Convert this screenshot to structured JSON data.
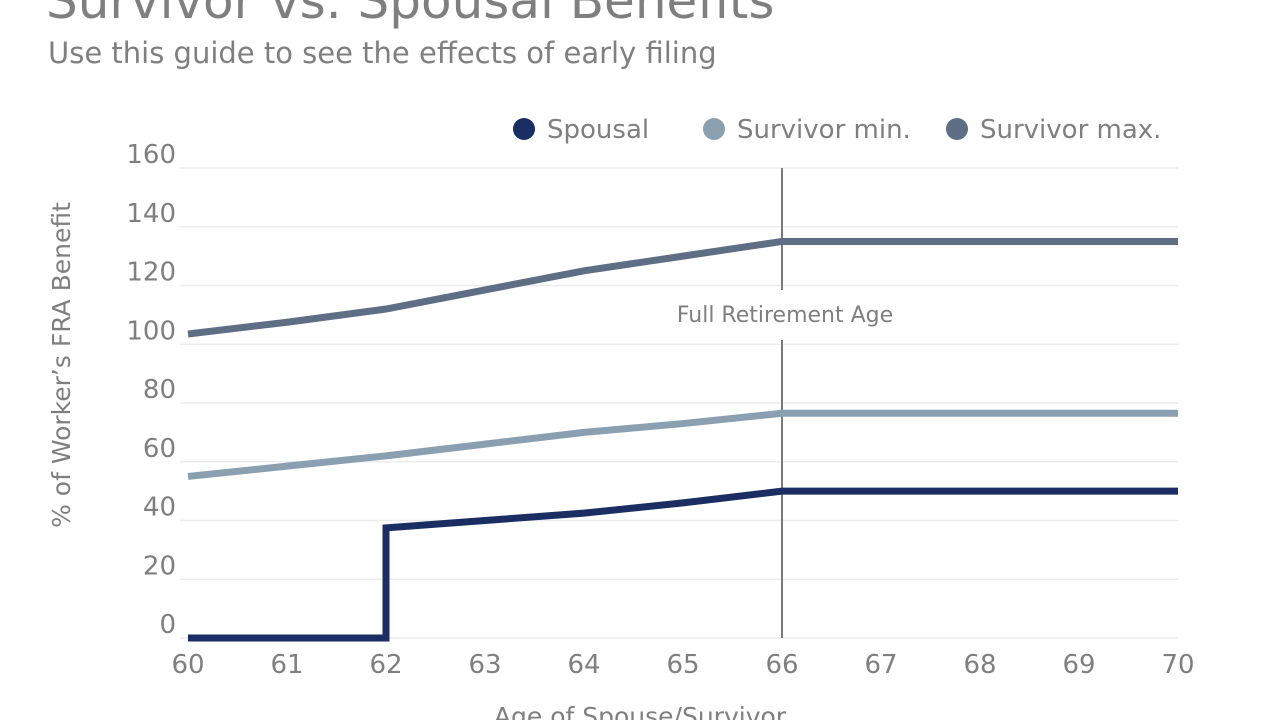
{
  "chart_data": {
    "type": "line",
    "title": "Survivor vs. Spousal Benefits",
    "subtitle": "Use this guide to see the effects of early filing",
    "xlabel": "Age of Spouse/Survivor",
    "ylabel": "% of Worker’s FRA Benefit",
    "xlim": [
      60,
      70
    ],
    "ylim": [
      0,
      160
    ],
    "xticks": [
      60,
      61,
      62,
      63,
      64,
      65,
      66,
      67,
      68,
      69,
      70
    ],
    "yticks": [
      0,
      20,
      40,
      60,
      80,
      100,
      120,
      140,
      160
    ],
    "grid": "horizontal",
    "legend_position": "top-right",
    "annotation": {
      "label": "Full Retirement Age",
      "x": 66
    },
    "series": [
      {
        "name": "Spousal",
        "color": "#1a2e63",
        "points": [
          [
            60,
            0
          ],
          [
            62,
            0
          ],
          [
            62,
            37.5
          ],
          [
            63,
            40
          ],
          [
            64,
            42.5
          ],
          [
            65,
            46
          ],
          [
            66,
            50
          ],
          [
            67,
            50
          ],
          [
            68,
            50
          ],
          [
            69,
            50
          ],
          [
            70,
            50
          ]
        ]
      },
      {
        "name": "Survivor min.",
        "color": "#8a9fb0",
        "points": [
          [
            60,
            55
          ],
          [
            61,
            58.5
          ],
          [
            62,
            62
          ],
          [
            63,
            66
          ],
          [
            64,
            70
          ],
          [
            65,
            73
          ],
          [
            66,
            76.5
          ],
          [
            67,
            76.5
          ],
          [
            68,
            76.5
          ],
          [
            69,
            76.5
          ],
          [
            70,
            76.5
          ]
        ]
      },
      {
        "name": "Survivor max.",
        "color": "#5e6e85",
        "points": [
          [
            60,
            103.5
          ],
          [
            61,
            107.5
          ],
          [
            62,
            112
          ],
          [
            63,
            118.5
          ],
          [
            64,
            125
          ],
          [
            65,
            130
          ],
          [
            66,
            135
          ],
          [
            67,
            135
          ],
          [
            68,
            135
          ],
          [
            69,
            135
          ],
          [
            70,
            135
          ]
        ]
      }
    ]
  }
}
